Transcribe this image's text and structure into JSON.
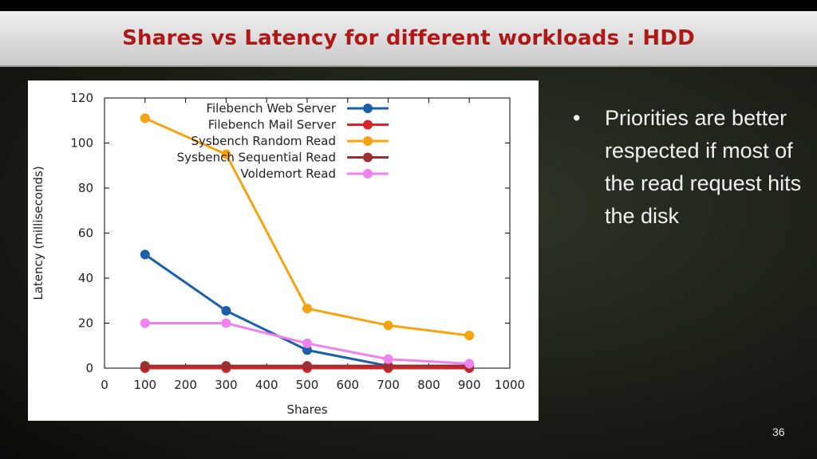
{
  "slide": {
    "title": "Shares vs Latency for different workloads : HDD",
    "bullets": [
      "Priorities are better respected if most of the read request hits the disk"
    ],
    "bullet_symbol": "•",
    "page_number": "36",
    "title_color": "#b01818"
  },
  "chart_data": {
    "type": "line",
    "title": "",
    "xlabel": "Shares",
    "ylabel": "Latency (milliseconds)",
    "xlim": [
      0,
      1000
    ],
    "ylim": [
      0,
      120
    ],
    "xticks": [
      0,
      100,
      200,
      300,
      400,
      500,
      600,
      700,
      800,
      900,
      1000
    ],
    "yticks": [
      0,
      20,
      40,
      60,
      80,
      100,
      120
    ],
    "x": [
      100,
      300,
      500,
      700,
      900
    ],
    "grid": false,
    "legend_position": "top-right",
    "series": [
      {
        "name": "Filebench Web Server",
        "color": "#1a5fa8",
        "values": [
          50.5,
          25.5,
          8,
          1,
          1
        ]
      },
      {
        "name": "Filebench Mail Server",
        "color": "#d8232a",
        "values": [
          0,
          0,
          0,
          0,
          0
        ]
      },
      {
        "name": "Sysbench Random Read",
        "color": "#f5a30f",
        "values": [
          111,
          95,
          26.5,
          19,
          14.5
        ]
      },
      {
        "name": "Sysbench Sequential Read",
        "color": "#9c2f2f",
        "values": [
          1,
          1,
          1,
          1,
          1
        ]
      },
      {
        "name": "Voldemort Read",
        "color": "#ee82ee",
        "values": [
          20,
          20,
          11,
          4,
          2
        ]
      }
    ]
  }
}
